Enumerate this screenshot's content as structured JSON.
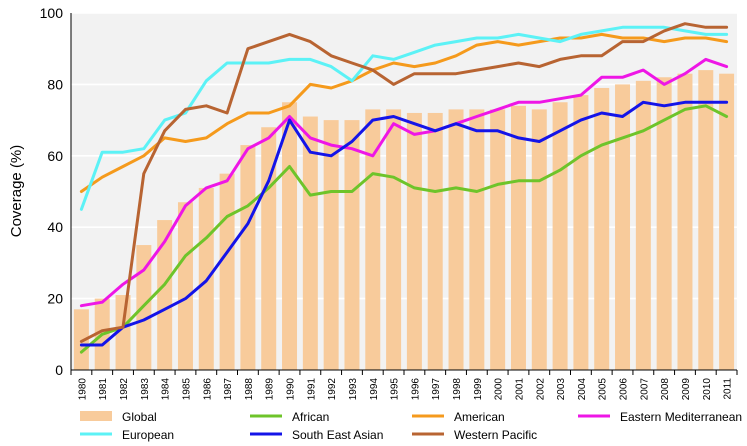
{
  "chart_data": {
    "type": "bar",
    "ylabel": "Coverage (%)",
    "xlabel": "",
    "ylim": [
      0,
      100
    ],
    "yticks": [
      0,
      20,
      40,
      60,
      80,
      100
    ],
    "grid": "horizontal",
    "legend_position": "bottom",
    "categories": [
      "1980",
      "1981",
      "1982",
      "1983",
      "1984",
      "1985",
      "1986",
      "1987",
      "1988",
      "1989",
      "1990",
      "1991",
      "1992",
      "1993",
      "1994",
      "1995",
      "1996",
      "1997",
      "1998",
      "1999",
      "2000",
      "2001",
      "2002",
      "2003",
      "2004",
      "2005",
      "2006",
      "2007",
      "2008",
      "2009",
      "2010",
      "2011"
    ],
    "bars": {
      "name": "Global",
      "color": "#f8cb9b",
      "values": [
        17,
        20,
        21,
        35,
        42,
        47,
        51,
        55,
        63,
        68,
        75,
        71,
        70,
        70,
        73,
        73,
        72,
        72,
        73,
        73,
        73,
        74,
        73,
        75,
        77,
        79,
        80,
        81,
        82,
        83,
        84,
        83
      ]
    },
    "series": [
      {
        "name": "African",
        "color": "#6ec42a",
        "values": [
          5,
          10,
          12,
          18,
          24,
          32,
          37,
          43,
          46,
          51,
          57,
          49,
          50,
          50,
          55,
          54,
          51,
          50,
          51,
          50,
          52,
          53,
          53,
          56,
          60,
          63,
          65,
          67,
          70,
          73,
          74,
          71
        ]
      },
      {
        "name": "American",
        "color": "#f59a1c",
        "values": [
          50,
          54,
          57,
          60,
          65,
          64,
          65,
          69,
          72,
          72,
          74,
          80,
          79,
          81,
          84,
          86,
          85,
          86,
          88,
          91,
          92,
          91,
          92,
          93,
          93,
          94,
          93,
          93,
          92,
          93,
          93,
          92
        ]
      },
      {
        "name": "Eastern Mediterranean",
        "color": "#ee16e6",
        "values": [
          18,
          19,
          24,
          28,
          36,
          46,
          51,
          53,
          62,
          65,
          71,
          65,
          63,
          62,
          60,
          69,
          66,
          67,
          69,
          71,
          73,
          75,
          75,
          76,
          77,
          82,
          82,
          84,
          80,
          83,
          87,
          85
        ]
      },
      {
        "name": "European",
        "color": "#5cf2f6",
        "values": [
          45,
          61,
          61,
          62,
          70,
          72,
          81,
          86,
          86,
          86,
          87,
          87,
          85,
          81,
          88,
          87,
          89,
          91,
          92,
          93,
          93,
          94,
          93,
          92,
          94,
          95,
          96,
          96,
          96,
          95,
          94,
          94
        ]
      },
      {
        "name": "South East Asian",
        "color": "#1414e8",
        "values": [
          7,
          7,
          12,
          14,
          17,
          20,
          25,
          33,
          41,
          53,
          70,
          61,
          60,
          64,
          70,
          71,
          69,
          67,
          69,
          67,
          67,
          65,
          64,
          67,
          70,
          72,
          71,
          75,
          74,
          75,
          75,
          75
        ]
      },
      {
        "name": "Western Pacific",
        "color": "#b86432",
        "values": [
          8,
          11,
          12,
          55,
          67,
          73,
          74,
          72,
          90,
          92,
          94,
          92,
          88,
          86,
          84,
          80,
          83,
          83,
          83,
          84,
          85,
          86,
          85,
          87,
          88,
          88,
          92,
          92,
          95,
          97,
          96,
          96
        ]
      }
    ],
    "legend_order": [
      "Global",
      "African",
      "American",
      "Eastern Mediterranean",
      "European",
      "South East Asian",
      "Western Pacific"
    ]
  }
}
